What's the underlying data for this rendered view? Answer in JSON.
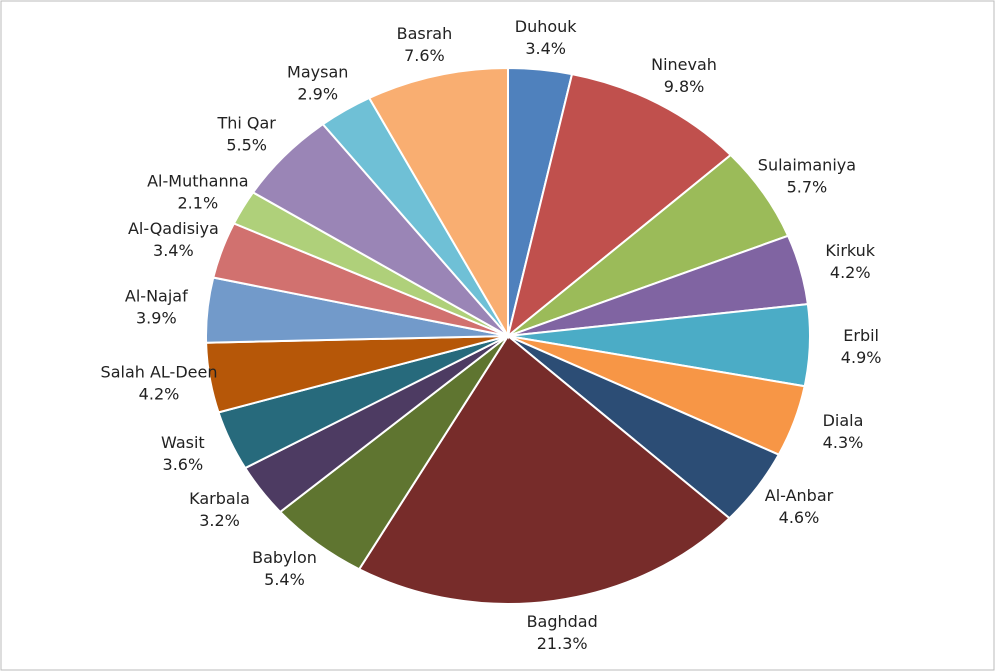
{
  "chart_data": {
    "type": "pie",
    "categories": [
      "Duhouk",
      "Ninevah",
      "Sulaimaniya",
      "Kirkuk",
      "Erbil",
      "Diala",
      "Al-Anbar",
      "Baghdad",
      "Babylon",
      "Karbala",
      "Wasit",
      "Salah AL-Deen",
      "Al-Najaf",
      "Al-Qadisiya",
      "Al-Muthanna",
      "Thi Qar",
      "Maysan",
      "Basrah"
    ],
    "values": [
      3.4,
      9.8,
      5.7,
      4.2,
      4.9,
      4.3,
      4.6,
      21.3,
      5.4,
      3.2,
      3.6,
      4.2,
      3.9,
      3.4,
      2.1,
      5.5,
      2.9,
      7.6
    ],
    "value_labels": [
      "3.4%",
      "9.8%",
      "5.7%",
      "4.2%",
      "4.9%",
      "4.3%",
      "4.6%",
      "21.3%",
      "5.4%",
      "3.2%",
      "3.6%",
      "4.2%",
      "3.9%",
      "3.4%",
      "2.1%",
      "5.5%",
      "2.9%",
      "7.6%"
    ],
    "colors": [
      "#4f81bd",
      "#c0504d",
      "#9bbb59",
      "#8064a2",
      "#4bacc6",
      "#f79646",
      "#2c4d75",
      "#772c2a",
      "#5f7530",
      "#4d3b62",
      "#276a7c",
      "#b65708",
      "#729aca",
      "#d1716f",
      "#afd07a",
      "#9a85b6",
      "#6fc0d6",
      "#f9ae71"
    ]
  }
}
